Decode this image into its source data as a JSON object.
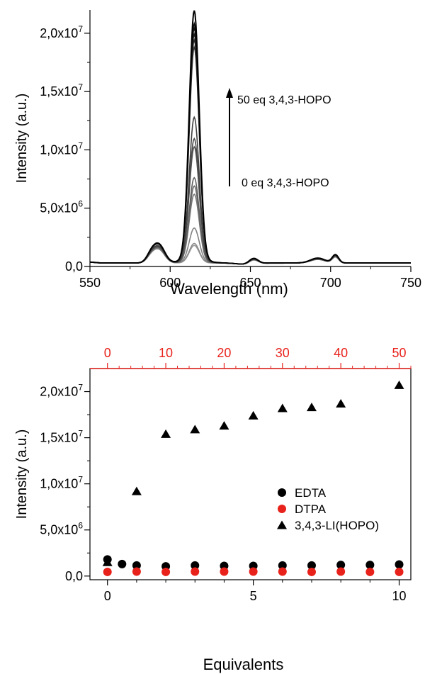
{
  "chart_data": [
    {
      "type": "line",
      "xlabel": "Wavelength (nm)",
      "ylabel": "Intensity (a.u.)",
      "xlim": [
        550,
        750
      ],
      "ylim": [
        0,
        22000000
      ],
      "x_ticks": [
        "550",
        "600",
        "650",
        "700",
        "750"
      ],
      "y_ticks": [
        {
          "mant": "0,0",
          "exp": ""
        },
        {
          "mant": "5,0x10",
          "exp": "6"
        },
        {
          "mant": "1,0x10",
          "exp": "7"
        },
        {
          "mant": "1,5x10",
          "exp": "7"
        },
        {
          "mant": "2,0x10",
          "exp": "7"
        }
      ],
      "annotations": {
        "top": "50 eq 3,4,3-HOPO",
        "bottom": "0 eq 3,4,3-HOPO"
      },
      "peak_wavelength": 615,
      "peak_heights": [
        1480000,
        1650000,
        2950000,
        5800000,
        6500000,
        7200000,
        9800000,
        10500000,
        12300000,
        18200000,
        18800000,
        19300000,
        19800000,
        20200000,
        21300000
      ]
    },
    {
      "type": "scatter",
      "xlabel": "Equivalents",
      "ylabel": "Intensity (a.u.)",
      "xlim": [
        -0.6,
        10.4
      ],
      "ylim": [
        -400000,
        22500000
      ],
      "top_xlim": [
        -3,
        52
      ],
      "x_ticks": [
        "0",
        "5",
        "10"
      ],
      "top_x_ticks": [
        "0",
        "10",
        "20",
        "30",
        "40",
        "50"
      ],
      "y_ticks": [
        {
          "mant": "0,0",
          "exp": ""
        },
        {
          "mant": "5,0x10",
          "exp": "6"
        },
        {
          "mant": "1,0x10",
          "exp": "7"
        },
        {
          "mant": "1,5x10",
          "exp": "7"
        },
        {
          "mant": "2,0x10",
          "exp": "7"
        }
      ],
      "legend_position": "center-right",
      "series": [
        {
          "name": "EDTA",
          "color": "#000000",
          "marker": "circle",
          "x": [
            0,
            0.5,
            1,
            2,
            3,
            4,
            5,
            6,
            7,
            8,
            9,
            10
          ],
          "y": [
            1800000,
            1300000,
            1150000,
            1050000,
            1150000,
            1100000,
            1100000,
            1150000,
            1150000,
            1200000,
            1200000,
            1250000
          ]
        },
        {
          "name": "DTPA",
          "color": "#e8221b",
          "marker": "circle",
          "x": [
            0,
            1,
            2,
            3,
            4,
            5,
            6,
            7,
            8,
            9,
            10
          ],
          "y": [
            450000,
            480000,
            450000,
            480000,
            480000,
            480000,
            480000,
            450000,
            480000,
            450000,
            450000
          ]
        },
        {
          "name": "3,4,3-LI(HOPO)",
          "color": "#000000",
          "marker": "triangle",
          "x": [
            0,
            1,
            2,
            3,
            4,
            5,
            6,
            7,
            8,
            10
          ],
          "y": [
            1500000,
            9200000,
            15400000,
            15900000,
            16300000,
            17400000,
            18200000,
            18300000,
            18700000,
            20700000
          ]
        }
      ]
    }
  ]
}
